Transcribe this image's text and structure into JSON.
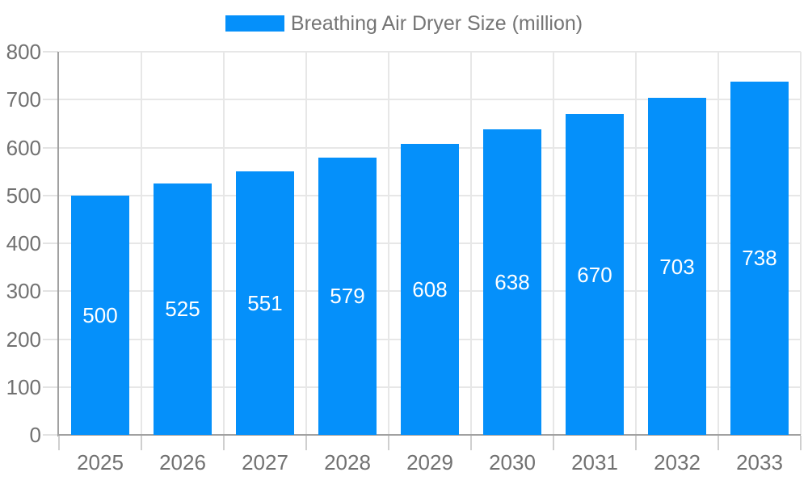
{
  "legend": {
    "label": "Breathing Air Dryer Size (million)"
  },
  "colors": {
    "bar": "#0590fa",
    "grid": "#e7e7e7",
    "axis": "#a1a1a1",
    "tick_x": "#cfcfcf",
    "tick_y": "#e3e3e3",
    "text": "#717171",
    "bar_label": "#ffffff"
  },
  "chart_data": {
    "type": "bar",
    "title": "Breathing Air Dryer Size (million)",
    "series_name": "Breathing Air Dryer Size (million)",
    "categories": [
      "2025",
      "2026",
      "2027",
      "2028",
      "2029",
      "2030",
      "2031",
      "2032",
      "2033"
    ],
    "values": [
      500,
      525,
      551,
      579,
      608,
      638,
      670,
      703,
      738
    ],
    "xlabel": "",
    "ylabel": "",
    "ylim": [
      0,
      800
    ],
    "yticks": [
      0,
      100,
      200,
      300,
      400,
      500,
      600,
      700,
      800
    ],
    "grid": true,
    "legend_position": "top",
    "value_labels": "inside-center"
  }
}
